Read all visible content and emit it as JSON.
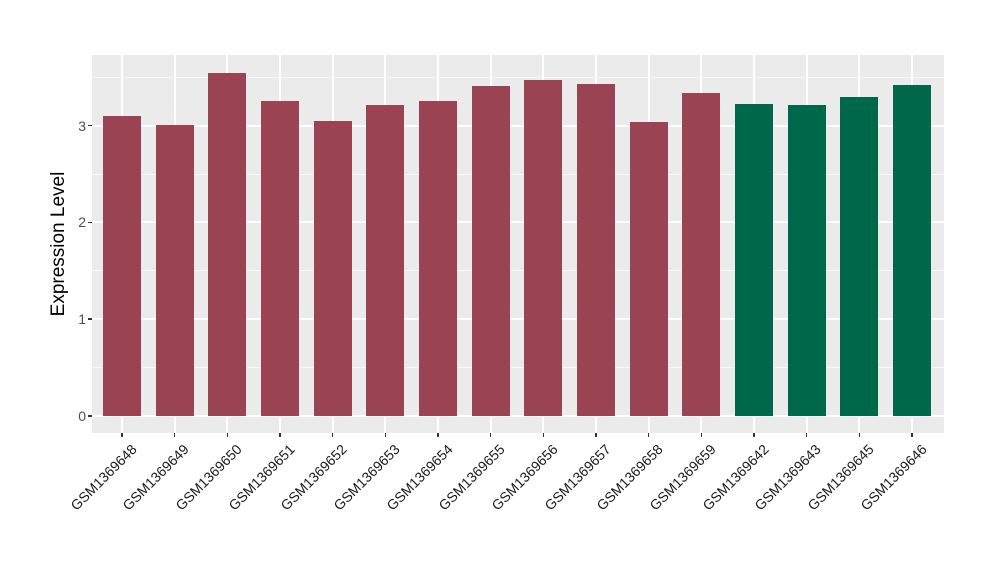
{
  "figure": {
    "background": "#FFFFFF",
    "panel_background": "#EBEBEB",
    "grid_color": "#FFFFFF",
    "tick_color": "#333333",
    "axis_text_color": "#4D4D4D",
    "x_label_color": "#1A1A1A"
  },
  "chart_data": {
    "type": "bar",
    "title": "",
    "xlabel": "",
    "ylabel": "Expression Level",
    "categories": [
      "GSM1369648",
      "GSM1369649",
      "GSM1369650",
      "GSM1369651",
      "GSM1369652",
      "GSM1369653",
      "GSM1369654",
      "GSM1369655",
      "GSM1369656",
      "GSM1369657",
      "GSM1369658",
      "GSM1369659",
      "GSM1369642",
      "GSM1369643",
      "GSM1369645",
      "GSM1369646"
    ],
    "values": [
      3.1,
      3.01,
      3.54,
      3.25,
      3.05,
      3.21,
      3.25,
      3.41,
      3.47,
      3.43,
      3.04,
      3.34,
      3.22,
      3.21,
      3.3,
      3.42
    ],
    "groups": [
      "group1",
      "group1",
      "group1",
      "group1",
      "group1",
      "group1",
      "group1",
      "group1",
      "group1",
      "group1",
      "group1",
      "group1",
      "group2",
      "group2",
      "group2",
      "group2"
    ],
    "group_colors": {
      "group1": "#9A4352",
      "group2": "#00684A"
    },
    "yticks": [
      0,
      1,
      2,
      3
    ],
    "ytick_labels": [
      "0",
      "1",
      "2",
      "3"
    ],
    "yminor": [
      0.5,
      1.5,
      2.5,
      3.5
    ],
    "ylim": [
      -0.18,
      3.73
    ],
    "grid": true,
    "legend": "none"
  }
}
